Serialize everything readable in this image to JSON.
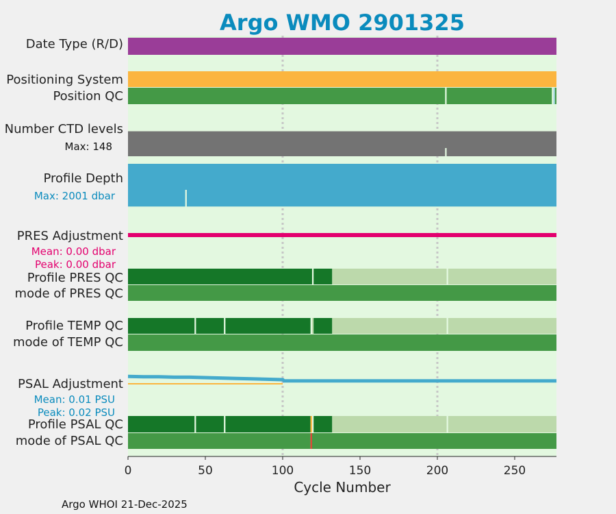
{
  "colors": {
    "background": "#f0f0f0",
    "plot_bg": "#e3f8e0",
    "title": "#0a8bbd",
    "purple": "#9a3d98",
    "orange": "#fbb53f",
    "green": "#449946",
    "dark_green": "#157728",
    "light_green": "#bcd9ab",
    "gray": "#737373",
    "blue": "#44aacc",
    "magenta": "#e3006e",
    "red": "#e24032",
    "grid": "#c6c6c6",
    "light_blue": "#a9dbe8"
  },
  "chart_data": {
    "type": "multi-track status plot",
    "title": "Argo WMO 2901325",
    "xlabel": "Cycle Number",
    "xlim": [
      0,
      277
    ],
    "xticks": [
      0,
      50,
      100,
      150,
      200,
      250
    ],
    "xtick_labels": [
      "0",
      "50",
      "100",
      "150",
      "200",
      "250"
    ],
    "footer": "Argo WHOI 21-Dec-2025",
    "row_labels": {
      "date_type": "Date Type (R/D)",
      "positioning_system": "Positioning System",
      "position_qc": "Position QC",
      "ctd_levels": "Number CTD levels",
      "profile_depth": "Profile Depth",
      "pres_adjustment": "PRES Adjustment",
      "profile_pres_qc": "Profile PRES QC",
      "mode_pres_qc": "mode of PRES QC",
      "profile_temp_qc": "Profile TEMP QC",
      "mode_temp_qc": "mode of TEMP QC",
      "psal_adjustment": "PSAL Adjustment",
      "profile_psal_qc": "Profile PSAL QC",
      "mode_psal_qc": "mode of PSAL QC"
    },
    "stats": {
      "ctd_max": "Max: 148",
      "depth_max": "Max: 2001 dbar",
      "pres_mean": "Mean: 0.00 dbar",
      "pres_peak": "Peak: 0.00 dbar",
      "psal_mean": "Mean: 0.01 PSU",
      "psal_peak": "Peak: 0.02 PSU"
    },
    "tracks": [
      {
        "name": "date-type-track",
        "segments": [
          [
            0,
            277,
            "purple"
          ]
        ]
      },
      {
        "name": "positioning-system-track",
        "segments": [
          [
            0,
            277,
            "orange"
          ]
        ]
      },
      {
        "name": "position-qc-track",
        "segments": [
          [
            0,
            205,
            "green"
          ],
          [
            206,
            274,
            "green"
          ],
          [
            275,
            276,
            "light_blue"
          ],
          [
            276,
            277,
            "green"
          ]
        ]
      },
      {
        "name": "profile-pres-qc-track",
        "segments": [
          [
            0,
            119,
            "dark_green"
          ],
          [
            120,
            132,
            "dark_green"
          ],
          [
            132,
            206,
            "light_green"
          ],
          [
            207,
            277,
            "light_green"
          ]
        ]
      },
      {
        "name": "mode-pres-qc-track",
        "segments": [
          [
            0,
            277,
            "green"
          ]
        ]
      },
      {
        "name": "profile-temp-qc-track",
        "segments": [
          [
            0,
            43,
            "dark_green"
          ],
          [
            44,
            62,
            "dark_green"
          ],
          [
            63,
            118,
            "dark_green"
          ],
          [
            119,
            120,
            "light_green"
          ],
          [
            120,
            132,
            "dark_green"
          ],
          [
            132,
            206,
            "light_green"
          ],
          [
            207,
            277,
            "light_green"
          ]
        ]
      },
      {
        "name": "mode-temp-qc-track",
        "segments": [
          [
            0,
            277,
            "green"
          ]
        ]
      },
      {
        "name": "profile-psal-qc-track",
        "segments": [
          [
            0,
            43,
            "dark_green"
          ],
          [
            44,
            62,
            "dark_green"
          ],
          [
            63,
            118,
            "dark_green"
          ],
          [
            118,
            119,
            "orange"
          ],
          [
            120,
            132,
            "dark_green"
          ],
          [
            132,
            206,
            "light_green"
          ],
          [
            207,
            277,
            "light_green"
          ]
        ]
      },
      {
        "name": "mode-psal-qc-track",
        "segments": [
          [
            0,
            118,
            "green"
          ],
          [
            118,
            119,
            "red"
          ],
          [
            119,
            277,
            "green"
          ]
        ]
      }
    ],
    "ctd_levels": {
      "max": 148,
      "typical": 142,
      "low_cycles": [
        [
          205,
          206
        ]
      ],
      "color": "gray"
    },
    "profile_depth": {
      "max_dbar": 2001,
      "typical_dbar": 1950,
      "shallow_cycles": [
        [
          37,
          38
        ]
      ],
      "color": "blue"
    },
    "pres_adjustment": {
      "mean_dbar": 0.0,
      "peak_dbar": 0.0,
      "color": "magenta"
    },
    "psal_adjustment": {
      "mean_psu": 0.01,
      "peak_psu": 0.02,
      "color": "blue",
      "baseline_color": "orange",
      "points": [
        [
          0,
          0.018
        ],
        [
          10,
          0.017
        ],
        [
          20,
          0.017
        ],
        [
          30,
          0.016
        ],
        [
          40,
          0.016
        ],
        [
          50,
          0.015
        ],
        [
          60,
          0.014
        ],
        [
          70,
          0.013
        ],
        [
          80,
          0.012
        ],
        [
          90,
          0.011
        ],
        [
          100,
          0.01
        ],
        [
          101,
          0.007
        ],
        [
          150,
          0.007
        ],
        [
          200,
          0.007
        ],
        [
          250,
          0.007
        ],
        [
          277,
          0.007
        ]
      ]
    }
  }
}
